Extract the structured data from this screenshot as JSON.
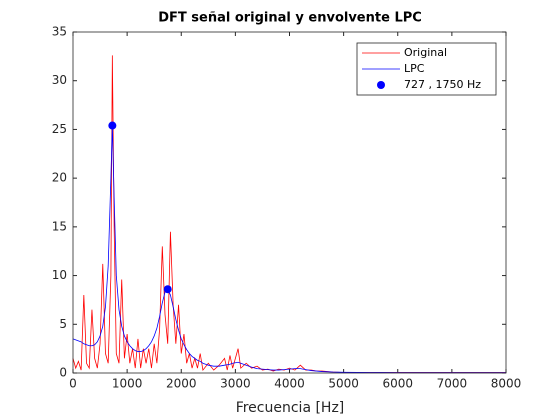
{
  "chart_data": {
    "type": "line",
    "title": "DFT señal original y envolvente LPC",
    "xlabel": "Frecuencia [Hz]",
    "x": [
      0,
      50,
      100,
      150,
      200,
      250,
      300,
      350,
      400,
      450,
      500,
      550,
      600,
      650,
      700,
      727,
      760,
      800,
      850,
      900,
      950,
      1000,
      1050,
      1100,
      1150,
      1200,
      1250,
      1300,
      1350,
      1400,
      1450,
      1500,
      1550,
      1600,
      1650,
      1700,
      1750,
      1800,
      1850,
      1900,
      1950,
      2000,
      2050,
      2100,
      2150,
      2200,
      2250,
      2300,
      2350,
      2400,
      2500,
      2600,
      2700,
      2800,
      2850,
      2900,
      2950,
      3000,
      3050,
      3100,
      3200,
      3300,
      3400,
      3500,
      3600,
      3700,
      3800,
      3900,
      4000,
      4100,
      4200,
      4300,
      4400,
      4500,
      4600,
      4800,
      5000,
      5500,
      6000,
      6500,
      7000,
      7500,
      8000
    ],
    "series": [
      {
        "name": "Original",
        "color": "#ff0000",
        "values": [
          1.5,
          0.5,
          1.2,
          0.3,
          8.0,
          1.0,
          0.5,
          6.5,
          1.5,
          0.5,
          3.0,
          11.2,
          2.0,
          1.0,
          10,
          32.6,
          15,
          2.0,
          1.0,
          9.6,
          1.5,
          4.0,
          1.0,
          2.5,
          0.5,
          3.5,
          0.5,
          2.5,
          1.0,
          2.5,
          0.5,
          3.0,
          1.0,
          4.5,
          13.0,
          6.0,
          3.0,
          14.5,
          7.0,
          3.0,
          7.0,
          2.0,
          4.0,
          1.0,
          2.0,
          0.5,
          1.5,
          0.5,
          2.0,
          0.3,
          1.0,
          0.3,
          0.8,
          1.5,
          0.3,
          1.8,
          0.5,
          1.5,
          2.5,
          0.5,
          1.0,
          0.5,
          0.7,
          0.3,
          0.4,
          0.2,
          0.4,
          0.3,
          0.5,
          0.3,
          0.8,
          0.3,
          0.3,
          0.2,
          0.2,
          0.1,
          0.05,
          0.05,
          0.05,
          0.05,
          0.05,
          0.05,
          0.05
        ]
      },
      {
        "name": "LPC",
        "color": "#0000ff",
        "values": [
          3.5,
          3.4,
          3.3,
          3.2,
          3.0,
          2.9,
          2.8,
          2.8,
          2.9,
          3.2,
          3.8,
          4.8,
          6.8,
          11,
          20,
          25.4,
          18,
          10,
          6.5,
          4.8,
          3.8,
          3.2,
          2.8,
          2.5,
          2.3,
          2.2,
          2.2,
          2.3,
          2.5,
          2.8,
          3.2,
          3.8,
          4.6,
          5.8,
          7.2,
          8.3,
          8.6,
          8.0,
          6.8,
          5.5,
          4.4,
          3.5,
          2.9,
          2.4,
          2.0,
          1.7,
          1.5,
          1.3,
          1.2,
          1.0,
          0.8,
          0.7,
          0.7,
          0.8,
          0.85,
          0.9,
          1.0,
          1.05,
          1.1,
          1.0,
          0.8,
          0.6,
          0.45,
          0.4,
          0.35,
          0.3,
          0.3,
          0.35,
          0.4,
          0.45,
          0.45,
          0.35,
          0.25,
          0.2,
          0.15,
          0.1,
          0.08,
          0.05,
          0.04,
          0.03,
          0.03,
          0.03,
          0.03
        ]
      },
      {
        "name": "727 , 1750 Hz",
        "color": "#0000ff",
        "type": "scatter",
        "x": [
          727,
          1750
        ],
        "values": [
          25.4,
          8.6
        ]
      }
    ],
    "xlim": [
      0,
      8000
    ],
    "xticks": [
      0,
      1000,
      2000,
      3000,
      4000,
      5000,
      6000,
      7000,
      8000
    ],
    "ylim": [
      0,
      35
    ],
    "yticks": [
      0,
      5,
      10,
      15,
      20,
      25,
      30,
      35
    ],
    "legend": "northeast"
  }
}
